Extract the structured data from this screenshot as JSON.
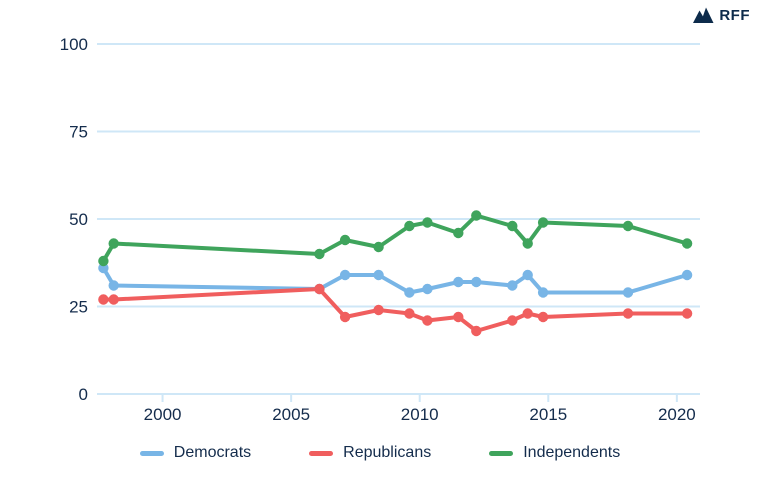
{
  "brand": {
    "name": "RFF",
    "color": "#0d2b4b"
  },
  "chart_data": {
    "type": "line",
    "title": "",
    "xlabel": "",
    "ylabel": "",
    "x": [
      1997.7,
      1998.1,
      2006.1,
      2007.1,
      2008.4,
      2009.6,
      2010.3,
      2011.5,
      2012.2,
      2013.6,
      2014.2,
      2014.8,
      2018.1,
      2020.4
    ],
    "series": [
      {
        "name": "Democrats",
        "color": "#78b5e6",
        "values": [
          36,
          31,
          30,
          34,
          34,
          29,
          30,
          32,
          32,
          31,
          34,
          29,
          29,
          34
        ]
      },
      {
        "name": "Republicans",
        "color": "#f05e5e",
        "values": [
          27,
          27,
          30,
          22,
          24,
          23,
          21,
          22,
          18,
          21,
          23,
          22,
          23,
          23
        ]
      },
      {
        "name": "Independents",
        "color": "#3fa45c",
        "values": [
          38,
          43,
          40,
          44,
          42,
          48,
          49,
          46,
          51,
          48,
          43,
          49,
          48,
          43
        ]
      }
    ],
    "yticks": [
      0,
      25,
      50,
      75,
      100
    ],
    "xticks": [
      2000,
      2005,
      2010,
      2015,
      2020
    ],
    "ylim": [
      0,
      100
    ],
    "xlim": [
      1997.45,
      2020.9
    ],
    "grid": true,
    "legend_position": "bottom",
    "gridline_color": "#cfe7f7",
    "axis_text_color": "#142c4c",
    "marker": "circle"
  }
}
